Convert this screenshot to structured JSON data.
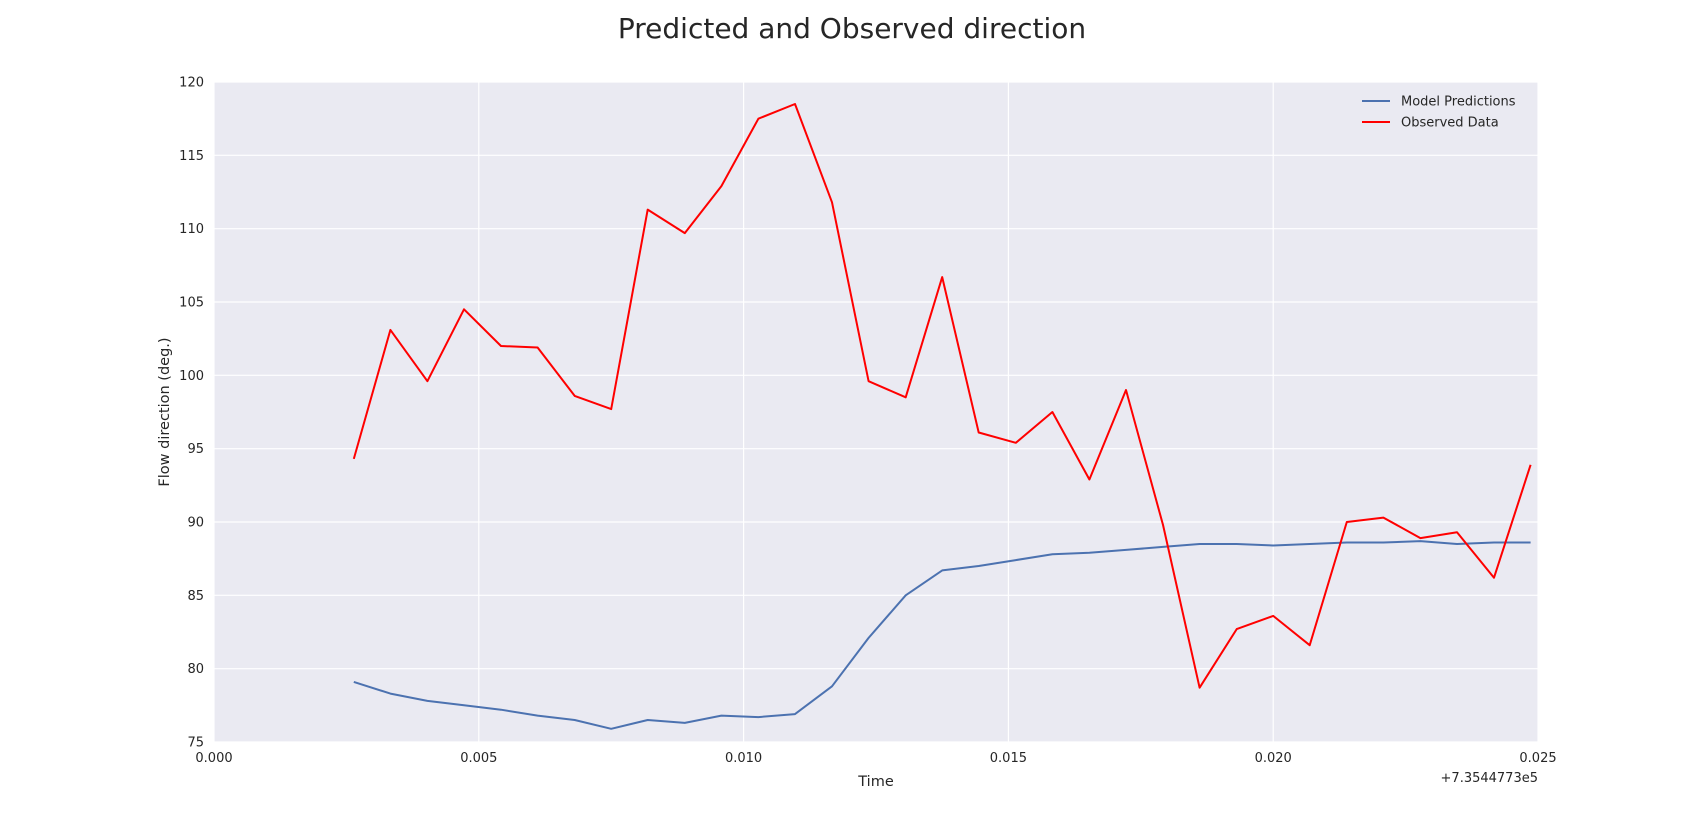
{
  "chart_data": {
    "type": "line",
    "title": "Predicted and Observed direction",
    "xlabel": "Time",
    "ylabel": "Flow direction (deg.)",
    "x_offset_label": "+7.3544773e5",
    "xlim": [
      0.0,
      0.025
    ],
    "ylim": [
      75,
      120
    ],
    "x_ticks": [
      0.0,
      0.005,
      0.01,
      0.015,
      0.02,
      0.025
    ],
    "x_tick_labels": [
      "0.000",
      "0.005",
      "0.010",
      "0.015",
      "0.020",
      "0.025"
    ],
    "y_ticks": [
      75,
      80,
      85,
      90,
      95,
      100,
      105,
      110,
      115,
      120
    ],
    "y_tick_labels": [
      "75",
      "80",
      "85",
      "90",
      "95",
      "100",
      "105",
      "110",
      "115",
      "120"
    ],
    "grid": true,
    "legend_position": "top-right",
    "background_color": "#eaeaf2",
    "grid_color": "#ffffff",
    "x": [
      0.00264,
      0.00333,
      0.00403,
      0.00472,
      0.00542,
      0.00611,
      0.00681,
      0.0075,
      0.00819,
      0.00889,
      0.00958,
      0.01028,
      0.01097,
      0.01167,
      0.01236,
      0.01306,
      0.01375,
      0.01444,
      0.01514,
      0.01583,
      0.01653,
      0.01722,
      0.01792,
      0.01861,
      0.01931,
      0.02,
      0.02069,
      0.02139,
      0.02208,
      0.02278,
      0.02347,
      0.02417,
      0.02486
    ],
    "series": [
      {
        "name": "Model Predictions",
        "color": "#4c72b0",
        "values": [
          79.1,
          78.3,
          77.8,
          77.5,
          77.2,
          76.8,
          76.5,
          75.9,
          76.5,
          76.3,
          76.8,
          76.7,
          76.9,
          78.8,
          82.1,
          85.0,
          86.7,
          87.0,
          87.4,
          87.8,
          87.9,
          88.1,
          88.3,
          88.5,
          88.5,
          88.4,
          88.5,
          88.6,
          88.6,
          88.7,
          88.5,
          88.6,
          88.6
        ]
      },
      {
        "name": "Observed Data",
        "color": "#ff0000",
        "values": [
          94.3,
          103.1,
          99.6,
          104.5,
          102.0,
          101.9,
          98.6,
          97.7,
          111.3,
          109.7,
          112.9,
          117.5,
          118.5,
          111.8,
          99.6,
          98.5,
          106.7,
          96.1,
          95.4,
          97.5,
          92.9,
          99.0,
          89.8,
          78.7,
          82.7,
          83.6,
          81.6,
          90.0,
          90.3,
          88.9,
          89.3,
          86.2,
          93.9
        ]
      }
    ]
  }
}
